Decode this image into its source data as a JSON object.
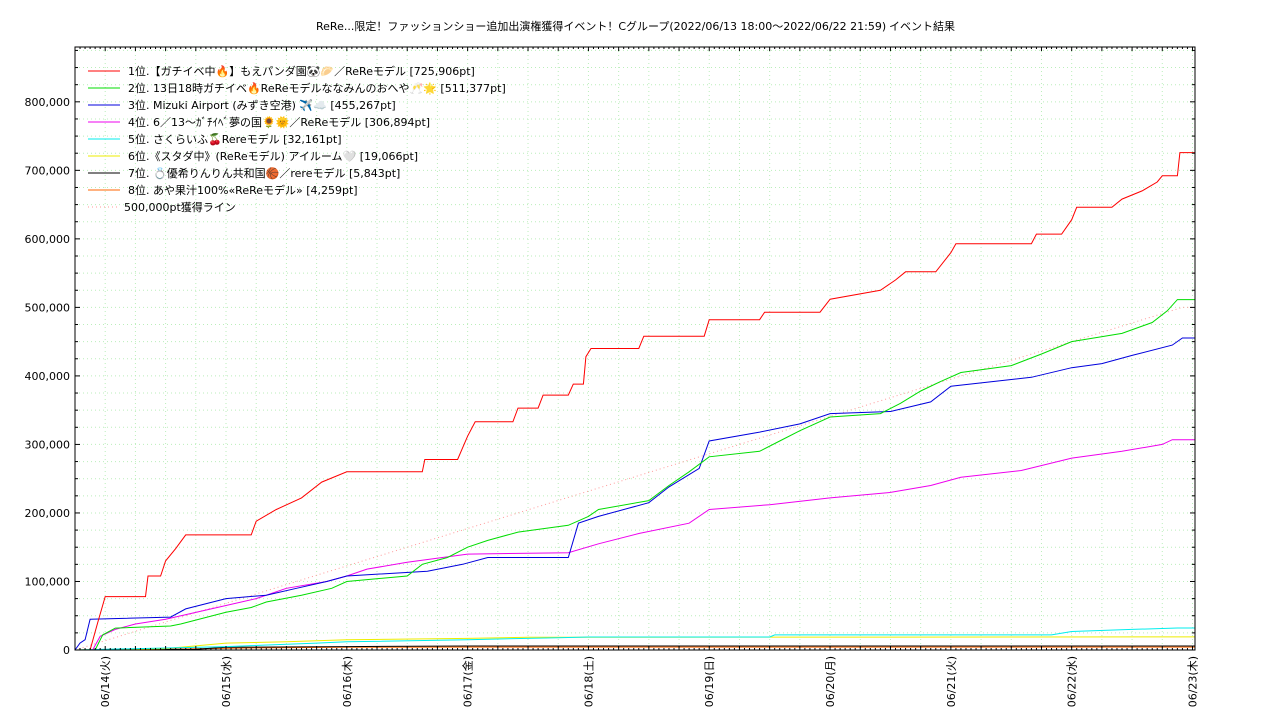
{
  "chart_data": {
    "type": "line",
    "title": "ReRe...限定！ファッションショー追加出演権獲得イベント！Cグループ(2022/06/13 18:00～2022/06/22 21:59)",
    "subtitle": "イベント結果",
    "xlabel": "",
    "ylabel": "",
    "x_start": "2022-06-13 18:00",
    "x_end": "2022-06-23 00:30",
    "x_ticks": [
      {
        "at": "2022-06-14 00:00",
        "label": "06/14(火)"
      },
      {
        "at": "2022-06-15 00:00",
        "label": "06/15(水)"
      },
      {
        "at": "2022-06-16 00:00",
        "label": "06/16(木)"
      },
      {
        "at": "2022-06-17 00:00",
        "label": "06/17(金)"
      },
      {
        "at": "2022-06-18 00:00",
        "label": "06/18(土)"
      },
      {
        "at": "2022-06-19 00:00",
        "label": "06/19(日)"
      },
      {
        "at": "2022-06-20 00:00",
        "label": "06/20(月)"
      },
      {
        "at": "2022-06-21 00:00",
        "label": "06/21(火)"
      },
      {
        "at": "2022-06-22 00:00",
        "label": "06/22(水)"
      },
      {
        "at": "2022-06-23 00:00",
        "label": "06/23(木)"
      }
    ],
    "ylim": [
      0,
      880000
    ],
    "y_ticks": [
      {
        "value": 0,
        "label": "0"
      },
      {
        "value": 100000,
        "label": "100,000"
      },
      {
        "value": 200000,
        "label": "200,000"
      },
      {
        "value": 300000,
        "label": "300,000"
      },
      {
        "value": 400000,
        "label": "400,000"
      },
      {
        "value": 500000,
        "label": "500,000"
      },
      {
        "value": 600000,
        "label": "600,000"
      },
      {
        "value": 700000,
        "label": "700,000"
      },
      {
        "value": 800000,
        "label": "800,000"
      }
    ],
    "grid": true,
    "legend_position": "top-left",
    "series": [
      {
        "name": "1位.【ガチイベ中🔥】もえパンダ園🐼🥟／ReReモデル [725,906pt]",
        "color": "#ff0000",
        "style": "solid",
        "points": [
          [
            "2022-06-13 18:00",
            0
          ],
          [
            "2022-06-13 21:00",
            0
          ],
          [
            "2022-06-13 22:30",
            40000
          ],
          [
            "2022-06-14 00:00",
            78000
          ],
          [
            "2022-06-14 08:00",
            78000
          ],
          [
            "2022-06-14 08:30",
            108000
          ],
          [
            "2022-06-14 11:00",
            108000
          ],
          [
            "2022-06-14 12:00",
            130000
          ],
          [
            "2022-06-14 14:00",
            148000
          ],
          [
            "2022-06-14 16:00",
            168000
          ],
          [
            "2022-06-15 05:00",
            168000
          ],
          [
            "2022-06-15 06:00",
            188000
          ],
          [
            "2022-06-15 10:00",
            205000
          ],
          [
            "2022-06-15 15:00",
            222000
          ],
          [
            "2022-06-15 19:00",
            245000
          ],
          [
            "2022-06-16 00:00",
            260000
          ],
          [
            "2022-06-16 15:00",
            260000
          ],
          [
            "2022-06-16 15:30",
            278000
          ],
          [
            "2022-06-16 22:00",
            278000
          ],
          [
            "2022-06-17 00:00",
            312000
          ],
          [
            "2022-06-17 01:30",
            333000
          ],
          [
            "2022-06-17 09:00",
            333000
          ],
          [
            "2022-06-17 10:00",
            353000
          ],
          [
            "2022-06-17 14:00",
            353000
          ],
          [
            "2022-06-17 15:00",
            372000
          ],
          [
            "2022-06-17 20:00",
            372000
          ],
          [
            "2022-06-17 21:00",
            388000
          ],
          [
            "2022-06-17 23:00",
            388000
          ],
          [
            "2022-06-17 23:30",
            428000
          ],
          [
            "2022-06-18 00:30",
            440000
          ],
          [
            "2022-06-18 10:00",
            440000
          ],
          [
            "2022-06-18 11:00",
            458000
          ],
          [
            "2022-06-18 23:00",
            458000
          ],
          [
            "2022-06-19 00:00",
            482000
          ],
          [
            "2022-06-19 10:00",
            482000
          ],
          [
            "2022-06-19 11:00",
            493000
          ],
          [
            "2022-06-19 22:00",
            493000
          ],
          [
            "2022-06-20 00:00",
            512000
          ],
          [
            "2022-06-20 10:00",
            525000
          ],
          [
            "2022-06-20 13:00",
            540000
          ],
          [
            "2022-06-20 15:00",
            552000
          ],
          [
            "2022-06-20 21:00",
            552000
          ],
          [
            "2022-06-21 00:00",
            580000
          ],
          [
            "2022-06-21 01:00",
            593000
          ],
          [
            "2022-06-21 16:00",
            593000
          ],
          [
            "2022-06-21 17:00",
            607000
          ],
          [
            "2022-06-21 22:00",
            607000
          ],
          [
            "2022-06-22 00:00",
            628000
          ],
          [
            "2022-06-22 01:00",
            646000
          ],
          [
            "2022-06-22 08:00",
            646000
          ],
          [
            "2022-06-22 10:00",
            658000
          ],
          [
            "2022-06-22 14:00",
            670000
          ],
          [
            "2022-06-22 17:00",
            683000
          ],
          [
            "2022-06-22 18:00",
            692000
          ],
          [
            "2022-06-22 21:00",
            692000
          ],
          [
            "2022-06-22 21:30",
            725906
          ],
          [
            "2022-06-23 00:30",
            725906
          ]
        ]
      },
      {
        "name": "2位. 13日18時ガチイベ🔥ReReモデルななみんのおへや🥂🌟 [511,377pt]",
        "color": "#00dd00",
        "style": "solid",
        "points": [
          [
            "2022-06-13 18:00",
            0
          ],
          [
            "2022-06-13 22:00",
            0
          ],
          [
            "2022-06-13 23:30",
            22000
          ],
          [
            "2022-06-14 02:00",
            32000
          ],
          [
            "2022-06-14 13:00",
            35000
          ],
          [
            "2022-06-14 15:00",
            38000
          ],
          [
            "2022-06-15 00:00",
            55000
          ],
          [
            "2022-06-15 05:00",
            62000
          ],
          [
            "2022-06-15 08:00",
            70000
          ],
          [
            "2022-06-15 15:00",
            80000
          ],
          [
            "2022-06-15 21:00",
            90000
          ],
          [
            "2022-06-16 00:00",
            100000
          ],
          [
            "2022-06-16 12:00",
            108000
          ],
          [
            "2022-06-16 15:00",
            125000
          ],
          [
            "2022-06-16 20:00",
            135000
          ],
          [
            "2022-06-17 00:00",
            150000
          ],
          [
            "2022-06-17 04:00",
            160000
          ],
          [
            "2022-06-17 10:00",
            172000
          ],
          [
            "2022-06-17 20:00",
            182000
          ],
          [
            "2022-06-18 00:00",
            195000
          ],
          [
            "2022-06-18 02:00",
            205000
          ],
          [
            "2022-06-18 12:00",
            218000
          ],
          [
            "2022-06-18 16:00",
            240000
          ],
          [
            "2022-06-18 20:00",
            260000
          ],
          [
            "2022-06-19 00:00",
            282000
          ],
          [
            "2022-06-19 10:00",
            290000
          ],
          [
            "2022-06-19 14:00",
            305000
          ],
          [
            "2022-06-19 18:00",
            320000
          ],
          [
            "2022-06-20 00:00",
            340000
          ],
          [
            "2022-06-20 10:00",
            345000
          ],
          [
            "2022-06-20 14:00",
            360000
          ],
          [
            "2022-06-20 18:00",
            378000
          ],
          [
            "2022-06-20 22:00",
            392000
          ],
          [
            "2022-06-21 02:00",
            405000
          ],
          [
            "2022-06-21 12:00",
            415000
          ],
          [
            "2022-06-21 18:00",
            432000
          ],
          [
            "2022-06-22 00:00",
            450000
          ],
          [
            "2022-06-22 10:00",
            462000
          ],
          [
            "2022-06-22 16:00",
            478000
          ],
          [
            "2022-06-22 19:00",
            495000
          ],
          [
            "2022-06-22 21:00",
            511377
          ],
          [
            "2022-06-23 00:30",
            511377
          ]
        ]
      },
      {
        "name": "3位. Mizuki Airport (みずき空港) ✈️☁️ [455,267pt]",
        "color": "#0000dd",
        "style": "solid",
        "points": [
          [
            "2022-06-13 18:00",
            0
          ],
          [
            "2022-06-13 19:00",
            10000
          ],
          [
            "2022-06-13 20:00",
            15000
          ],
          [
            "2022-06-13 21:00",
            45000
          ],
          [
            "2022-06-14 13:00",
            48000
          ],
          [
            "2022-06-14 16:00",
            60000
          ],
          [
            "2022-06-15 00:00",
            75000
          ],
          [
            "2022-06-15 08:00",
            80000
          ],
          [
            "2022-06-15 14:00",
            90000
          ],
          [
            "2022-06-15 20:00",
            100000
          ],
          [
            "2022-06-16 00:00",
            108000
          ],
          [
            "2022-06-16 16:00",
            115000
          ],
          [
            "2022-06-16 23:00",
            125000
          ],
          [
            "2022-06-17 04:00",
            135000
          ],
          [
            "2022-06-17 20:00",
            135000
          ],
          [
            "2022-06-17 22:00",
            185000
          ],
          [
            "2022-06-18 02:00",
            195000
          ],
          [
            "2022-06-18 12:00",
            215000
          ],
          [
            "2022-06-18 16:00",
            238000
          ],
          [
            "2022-06-18 22:00",
            265000
          ],
          [
            "2022-06-19 00:00",
            305000
          ],
          [
            "2022-06-19 10:00",
            318000
          ],
          [
            "2022-06-19 18:00",
            330000
          ],
          [
            "2022-06-20 00:00",
            345000
          ],
          [
            "2022-06-20 12:00",
            348000
          ],
          [
            "2022-06-20 20:00",
            362000
          ],
          [
            "2022-06-21 00:00",
            385000
          ],
          [
            "2022-06-21 16:00",
            398000
          ],
          [
            "2022-06-22 00:00",
            412000
          ],
          [
            "2022-06-22 06:00",
            418000
          ],
          [
            "2022-06-22 12:00",
            430000
          ],
          [
            "2022-06-22 20:00",
            445000
          ],
          [
            "2022-06-22 22:00",
            455267
          ],
          [
            "2022-06-23 00:30",
            455267
          ]
        ]
      },
      {
        "name": "4位. 6／13〜ｶﾞﾁｲﾍﾞ夢の国🌻🌞／ReReモデル [306,894pt]",
        "color": "#ee00ee",
        "style": "solid",
        "points": [
          [
            "2022-06-13 18:00",
            0
          ],
          [
            "2022-06-13 21:30",
            0
          ],
          [
            "2022-06-13 23:00",
            20000
          ],
          [
            "2022-06-14 02:00",
            30000
          ],
          [
            "2022-06-14 06:00",
            38000
          ],
          [
            "2022-06-14 12:00",
            45000
          ],
          [
            "2022-06-15 00:00",
            65000
          ],
          [
            "2022-06-15 06:00",
            75000
          ],
          [
            "2022-06-15 12:00",
            90000
          ],
          [
            "2022-06-15 20:00",
            100000
          ],
          [
            "2022-06-16 00:00",
            108000
          ],
          [
            "2022-06-16 04:00",
            118000
          ],
          [
            "2022-06-16 12:00",
            128000
          ],
          [
            "2022-06-17 00:00",
            140000
          ],
          [
            "2022-06-17 20:00",
            142000
          ],
          [
            "2022-06-18 02:00",
            155000
          ],
          [
            "2022-06-18 10:00",
            170000
          ],
          [
            "2022-06-18 20:00",
            185000
          ],
          [
            "2022-06-19 00:00",
            205000
          ],
          [
            "2022-06-19 12:00",
            212000
          ],
          [
            "2022-06-20 00:00",
            222000
          ],
          [
            "2022-06-20 12:00",
            230000
          ],
          [
            "2022-06-20 20:00",
            240000
          ],
          [
            "2022-06-21 02:00",
            252000
          ],
          [
            "2022-06-21 14:00",
            262000
          ],
          [
            "2022-06-22 00:00",
            280000
          ],
          [
            "2022-06-22 10:00",
            290000
          ],
          [
            "2022-06-22 18:00",
            300000
          ],
          [
            "2022-06-22 20:00",
            306894
          ],
          [
            "2022-06-23 00:30",
            306894
          ]
        ]
      },
      {
        "name": "5位. さくらいふ🍒Rereモデル [32,161pt]",
        "color": "#00eeee",
        "style": "solid",
        "points": [
          [
            "2022-06-13 18:00",
            0
          ],
          [
            "2022-06-14 00:00",
            1000
          ],
          [
            "2022-06-15 00:00",
            5000
          ],
          [
            "2022-06-15 18:00",
            10000
          ],
          [
            "2022-06-16 00:00",
            12000
          ],
          [
            "2022-06-17 00:00",
            15000
          ],
          [
            "2022-06-17 18:00",
            18000
          ],
          [
            "2022-06-18 00:00",
            19000
          ],
          [
            "2022-06-19 12:00",
            19000
          ],
          [
            "2022-06-19 13:00",
            22000
          ],
          [
            "2022-06-21 20:00",
            22000
          ],
          [
            "2022-06-22 00:00",
            27000
          ],
          [
            "2022-06-22 12:00",
            30000
          ],
          [
            "2022-06-22 21:00",
            32161
          ],
          [
            "2022-06-23 00:30",
            32161
          ]
        ]
      },
      {
        "name": "6位.《スタダ中》(ReReモデル) アイルーム🤍 [19,066pt]",
        "color": "#eeee00",
        "style": "solid",
        "points": [
          [
            "2022-06-13 18:00",
            0
          ],
          [
            "2022-06-14 12:00",
            2000
          ],
          [
            "2022-06-15 00:00",
            10000
          ],
          [
            "2022-06-15 12:00",
            12000
          ],
          [
            "2022-06-16 00:00",
            15000
          ],
          [
            "2022-06-17 00:00",
            17000
          ],
          [
            "2022-06-17 12:00",
            18500
          ],
          [
            "2022-06-22 21:00",
            19066
          ],
          [
            "2022-06-23 00:30",
            19066
          ]
        ]
      },
      {
        "name": "7位. 💍優希りんりん共和国🏀／rereモデル [5,843pt]",
        "color": "#000000",
        "style": "solid",
        "points": [
          [
            "2022-06-13 18:00",
            0
          ],
          [
            "2022-06-14 18:00",
            1000
          ],
          [
            "2022-06-15 00:00",
            4000
          ],
          [
            "2022-06-16 00:00",
            5000
          ],
          [
            "2022-06-17 00:00",
            5843
          ],
          [
            "2022-06-23 00:30",
            5843
          ]
        ]
      },
      {
        "name": "8位. あや果汁100%«ReReモデル» [4,259pt]",
        "color": "#ff6600",
        "style": "solid",
        "points": [
          [
            "2022-06-13 18:00",
            0
          ],
          [
            "2022-06-14 12:00",
            1000
          ],
          [
            "2022-06-15 06:00",
            3000
          ],
          [
            "2022-06-16 00:00",
            4000
          ],
          [
            "2022-06-17 00:00",
            4259
          ],
          [
            "2022-06-23 00:30",
            4259
          ]
        ]
      },
      {
        "name": "500,000pt獲得ライン",
        "color": "#ff9999",
        "style": "dotted",
        "points": [
          [
            "2022-06-13 18:00",
            0
          ],
          [
            "2022-06-22 21:59",
            500000
          ],
          [
            "2022-06-23 00:30",
            500000
          ]
        ]
      }
    ]
  }
}
